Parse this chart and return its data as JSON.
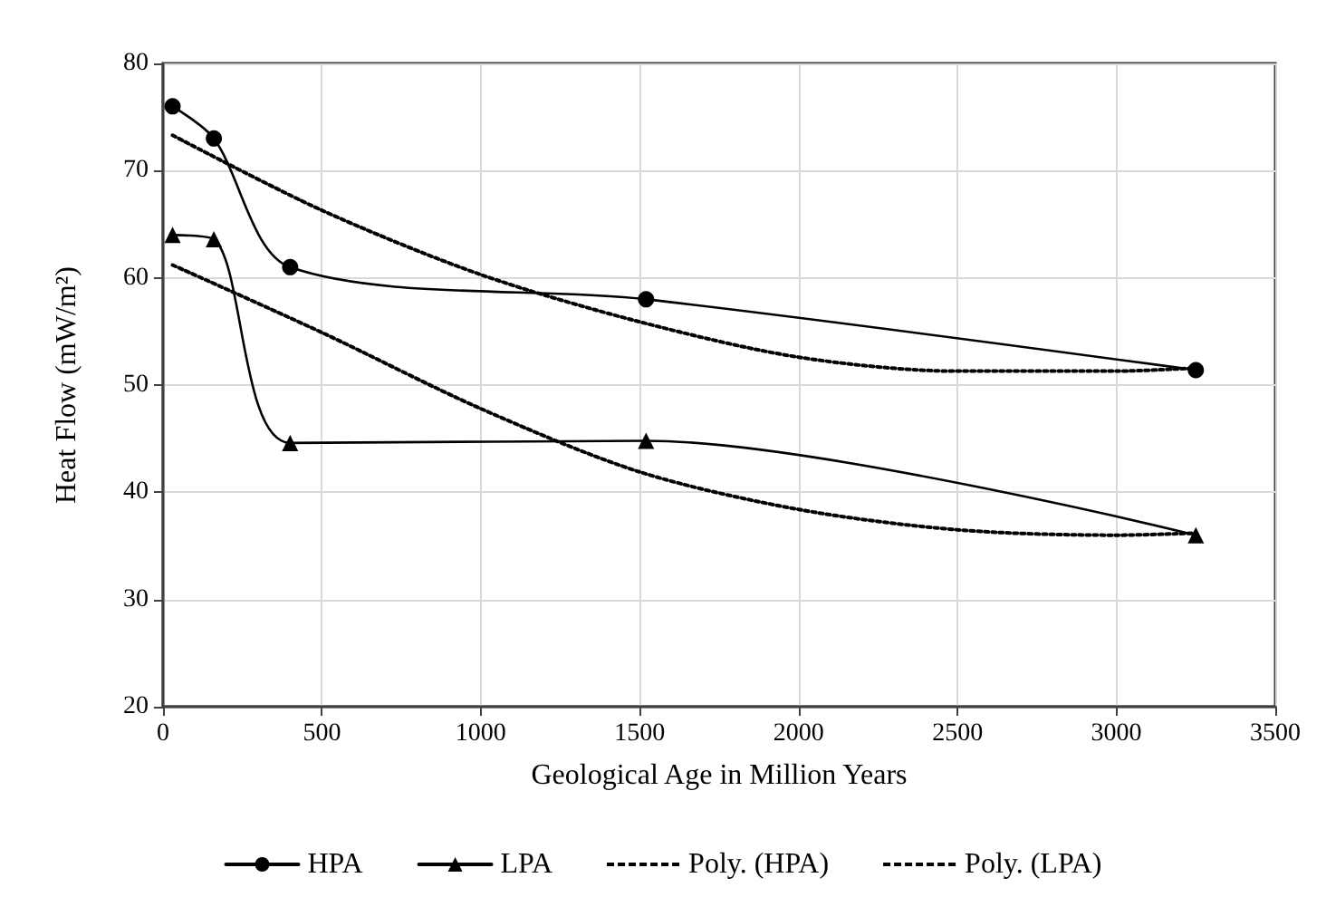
{
  "chart_data": {
    "type": "line",
    "xlabel": "Geological Age in Million Years",
    "ylabel": "Heat Flow (mW/m²)",
    "xlim": [
      0,
      3500
    ],
    "xticks": [
      0,
      500,
      1000,
      1500,
      2000,
      2500,
      3000,
      3500
    ],
    "ylim": [
      20,
      80
    ],
    "yticks": [
      20,
      30,
      40,
      50,
      60,
      70,
      80
    ],
    "grid": true,
    "legend": "bottom",
    "series": [
      {
        "name": "HPA",
        "color": "#000000",
        "marker": "circle",
        "line_style": "solid",
        "x": [
          30,
          160,
          400,
          1520,
          3250
        ],
        "values": [
          76,
          73,
          61,
          58,
          51.4
        ]
      },
      {
        "name": "LPA",
        "color": "#000000",
        "marker": "triangle",
        "line_style": "solid",
        "x": [
          30,
          160,
          400,
          1520,
          3250
        ],
        "values": [
          64,
          63.6,
          44.6,
          44.8,
          36
        ]
      },
      {
        "name": "Poly. (HPA)",
        "color": "#000000",
        "marker": "none",
        "line_style": "dotted",
        "x": [
          30,
          500,
          1000,
          1500,
          2000,
          2500,
          3000,
          3250
        ],
        "values": [
          73.3,
          66.3,
          60.3,
          55.9,
          52.6,
          51.3,
          51.3,
          51.6
        ]
      },
      {
        "name": "Poly. (LPA)",
        "color": "#000000",
        "marker": "none",
        "line_style": "dotted",
        "x": [
          30,
          500,
          1000,
          1500,
          2000,
          2500,
          3000,
          3250
        ],
        "values": [
          61.2,
          54.9,
          47.8,
          41.9,
          38.4,
          36.5,
          36.0,
          36.2
        ]
      }
    ]
  }
}
